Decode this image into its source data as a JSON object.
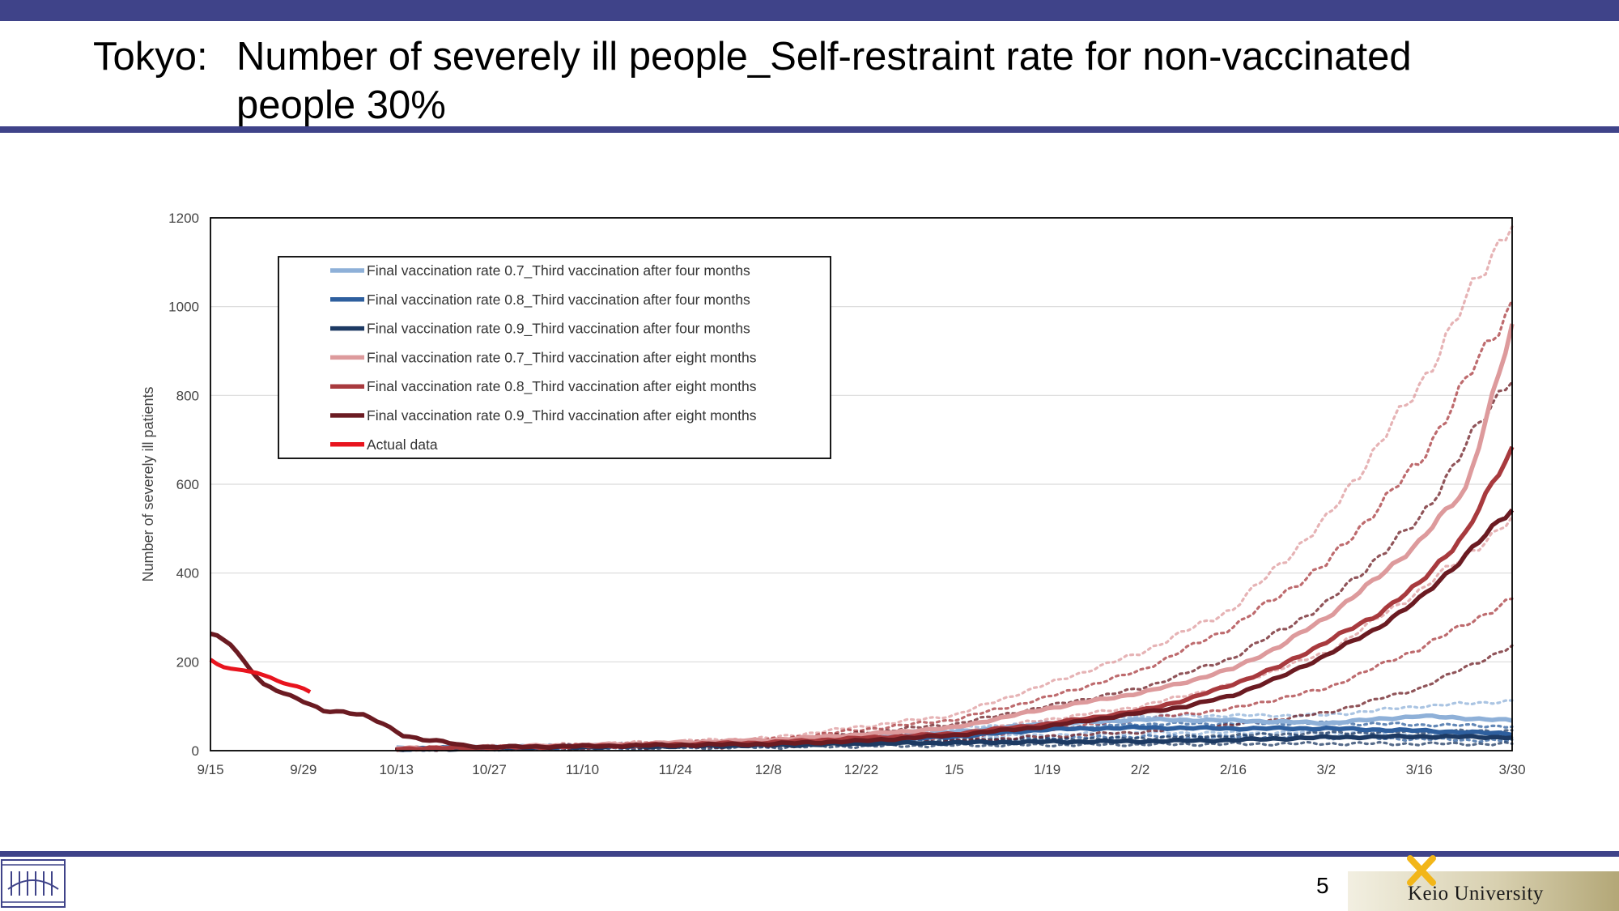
{
  "slide": {
    "title_prefix": "Tokyo:",
    "title": "Number of severely ill people_Self-restraint rate for non-vaccinated people 30%",
    "page_number": "5",
    "university": "Keio University"
  },
  "colors": {
    "accent_bar": "#3f4389",
    "rate07_four": "#8eb0d8",
    "rate08_four": "#2e5f9e",
    "rate09_four": "#1d3a63",
    "rate07_eight": "#dd9a9c",
    "rate08_eight": "#a83a3e",
    "rate09_eight": "#6b1b22",
    "actual": "#e8141e"
  },
  "chart_data": {
    "type": "line",
    "xlabel": "",
    "ylabel": "Number of severely ill patients",
    "x_ticks": [
      "9/15",
      "9/29",
      "10/13",
      "10/27",
      "11/10",
      "11/24",
      "12/8",
      "12/22",
      "1/5",
      "1/19",
      "2/2",
      "2/16",
      "3/2",
      "3/16",
      "3/30"
    ],
    "y_ticks": [
      0,
      200,
      400,
      600,
      800,
      1000,
      1200
    ],
    "ylim": [
      0,
      1200
    ],
    "x_unit": "days since 9/15",
    "xlim": [
      0,
      196
    ],
    "grid": "horizontal",
    "legend_position": "top-left",
    "series": [
      {
        "name": "Final vaccination rate 0.7_Third vaccination after four months",
        "color_key": "rate07_four",
        "points": [
          [
            28,
            5
          ],
          [
            56,
            10
          ],
          [
            84,
            18
          ],
          [
            100,
            28
          ],
          [
            112,
            42
          ],
          [
            126,
            60
          ],
          [
            140,
            70
          ],
          [
            154,
            68
          ],
          [
            168,
            62
          ],
          [
            182,
            78
          ],
          [
            196,
            68
          ]
        ],
        "band": [
          [
            [
              28,
              3
            ],
            [
              56,
              12
            ],
            [
              84,
              22
            ],
            [
              112,
              50
            ],
            [
              140,
              78
            ],
            [
              168,
              80
            ],
            [
              182,
              100
            ],
            [
              196,
              112
            ]
          ],
          [
            [
              28,
              2
            ],
            [
              56,
              6
            ],
            [
              84,
              12
            ],
            [
              112,
              30
            ],
            [
              140,
              40
            ],
            [
              168,
              40
            ],
            [
              196,
              30
            ]
          ]
        ]
      },
      {
        "name": "Final vaccination rate 0.8_Third vaccination after four months",
        "color_key": "rate08_four",
        "points": [
          [
            28,
            4
          ],
          [
            56,
            9
          ],
          [
            84,
            14
          ],
          [
            100,
            22
          ],
          [
            112,
            32
          ],
          [
            126,
            48
          ],
          [
            140,
            52
          ],
          [
            154,
            50
          ],
          [
            168,
            50
          ],
          [
            182,
            45
          ],
          [
            196,
            38
          ]
        ],
        "band": [
          [
            [
              28,
              3
            ],
            [
              56,
              10
            ],
            [
              84,
              18
            ],
            [
              112,
              40
            ],
            [
              140,
              60
            ],
            [
              168,
              62
            ],
            [
              196,
              55
            ]
          ],
          [
            [
              28,
              2
            ],
            [
              56,
              5
            ],
            [
              84,
              10
            ],
            [
              112,
              22
            ],
            [
              140,
              32
            ],
            [
              168,
              30
            ],
            [
              196,
              22
            ]
          ]
        ]
      },
      {
        "name": "Final vaccination rate 0.9_Third vaccination after four months",
        "color_key": "rate09_four",
        "points": [
          [
            28,
            3
          ],
          [
            56,
            8
          ],
          [
            84,
            12
          ],
          [
            100,
            16
          ],
          [
            112,
            18
          ],
          [
            126,
            20
          ],
          [
            140,
            21
          ],
          [
            154,
            24
          ],
          [
            168,
            30
          ],
          [
            182,
            32
          ],
          [
            196,
            30
          ]
        ],
        "band": [
          [
            [
              28,
              3
            ],
            [
              56,
              9
            ],
            [
              84,
              14
            ],
            [
              112,
              24
            ],
            [
              140,
              28
            ],
            [
              168,
              40
            ],
            [
              196,
              45
            ]
          ],
          [
            [
              28,
              2
            ],
            [
              56,
              5
            ],
            [
              84,
              8
            ],
            [
              112,
              12
            ],
            [
              140,
              14
            ],
            [
              168,
              16
            ],
            [
              196,
              15
            ]
          ]
        ]
      },
      {
        "name": "Final vaccination rate 0.7_Third vaccination after eight months",
        "color_key": "rate07_eight",
        "points": [
          [
            28,
            5
          ],
          [
            56,
            12
          ],
          [
            84,
            24
          ],
          [
            98,
            36
          ],
          [
            112,
            52
          ],
          [
            126,
            95
          ],
          [
            140,
            130
          ],
          [
            147,
            155
          ],
          [
            154,
            185
          ],
          [
            161,
            235
          ],
          [
            168,
            300
          ],
          [
            175,
            380
          ],
          [
            182,
            470
          ],
          [
            189,
            590
          ],
          [
            196,
            950
          ]
        ],
        "band": [
          [
            [
              28,
              5
            ],
            [
              56,
              14
            ],
            [
              84,
              28
            ],
            [
              112,
              80
            ],
            [
              126,
              150
            ],
            [
              140,
              220
            ],
            [
              154,
              320
            ],
            [
              168,
              520
            ],
            [
              182,
              820
            ],
            [
              196,
              1200
            ]
          ],
          [
            [
              28,
              3
            ],
            [
              56,
              8
            ],
            [
              84,
              16
            ],
            [
              112,
              40
            ],
            [
              126,
              70
            ],
            [
              140,
              100
            ],
            [
              154,
              150
            ],
            [
              168,
              220
            ],
            [
              182,
              360
            ],
            [
              196,
              520
            ]
          ]
        ]
      },
      {
        "name": "Final vaccination rate 0.8_Third vaccination after eight months",
        "color_key": "rate08_eight",
        "points": [
          [
            28,
            4
          ],
          [
            56,
            10
          ],
          [
            84,
            18
          ],
          [
            98,
            28
          ],
          [
            112,
            38
          ],
          [
            126,
            60
          ],
          [
            140,
            90
          ],
          [
            147,
            115
          ],
          [
            154,
            150
          ],
          [
            161,
            190
          ],
          [
            168,
            245
          ],
          [
            175,
            300
          ],
          [
            182,
            375
          ],
          [
            189,
            490
          ],
          [
            196,
            680
          ]
        ],
        "band": [
          [
            [
              28,
              4
            ],
            [
              56,
              12
            ],
            [
              84,
              24
            ],
            [
              112,
              70
            ],
            [
              126,
              120
            ],
            [
              140,
              180
            ],
            [
              154,
              280
            ],
            [
              168,
              420
            ],
            [
              182,
              650
            ],
            [
              196,
              1010
            ]
          ],
          [
            [
              28,
              3
            ],
            [
              56,
              7
            ],
            [
              84,
              13
            ],
            [
              112,
              30
            ],
            [
              126,
              48
            ],
            [
              140,
              70
            ],
            [
              154,
              95
            ],
            [
              168,
              140
            ],
            [
              182,
              230
            ],
            [
              196,
              340
            ]
          ]
        ]
      },
      {
        "name": "Final vaccination rate 0.9_Third vaccination after eight months",
        "color_key": "rate09_eight",
        "points": [
          [
            0,
            265
          ],
          [
            3,
            240
          ],
          [
            5,
            200
          ],
          [
            8,
            150
          ],
          [
            11,
            130
          ],
          [
            14,
            110
          ],
          [
            17,
            90
          ],
          [
            20,
            88
          ],
          [
            23,
            80
          ],
          [
            26,
            60
          ],
          [
            29,
            35
          ],
          [
            32,
            25
          ],
          [
            35,
            20
          ],
          [
            38,
            12
          ],
          [
            42,
            8
          ],
          [
            56,
            10
          ],
          [
            84,
            15
          ],
          [
            98,
            22
          ],
          [
            112,
            35
          ],
          [
            126,
            55
          ],
          [
            140,
            85
          ],
          [
            147,
            100
          ],
          [
            154,
            125
          ],
          [
            161,
            165
          ],
          [
            168,
            215
          ],
          [
            175,
            270
          ],
          [
            182,
            340
          ],
          [
            189,
            440
          ],
          [
            196,
            545
          ]
        ],
        "band": [
          [
            [
              28,
              4
            ],
            [
              56,
              12
            ],
            [
              84,
              20
            ],
            [
              112,
              60
            ],
            [
              126,
              100
            ],
            [
              140,
              140
            ],
            [
              154,
              210
            ],
            [
              168,
              330
            ],
            [
              182,
              520
            ],
            [
              196,
              850
            ]
          ],
          [
            [
              28,
              3
            ],
            [
              56,
              6
            ],
            [
              84,
              10
            ],
            [
              112,
              22
            ],
            [
              126,
              32
            ],
            [
              140,
              42
            ],
            [
              154,
              58
            ],
            [
              168,
              85
            ],
            [
              182,
              140
            ],
            [
              196,
              235
            ]
          ]
        ]
      },
      {
        "name": "Actual data",
        "color_key": "actual",
        "points": [
          [
            0,
            205
          ],
          [
            1,
            195
          ],
          [
            2,
            188
          ],
          [
            3,
            185
          ],
          [
            4,
            183
          ],
          [
            5,
            181
          ],
          [
            6,
            178
          ],
          [
            7,
            175
          ],
          [
            8,
            170
          ],
          [
            9,
            165
          ],
          [
            10,
            158
          ],
          [
            11,
            152
          ],
          [
            12,
            148
          ],
          [
            13,
            145
          ],
          [
            14,
            140
          ],
          [
            15,
            132
          ]
        ]
      }
    ]
  }
}
